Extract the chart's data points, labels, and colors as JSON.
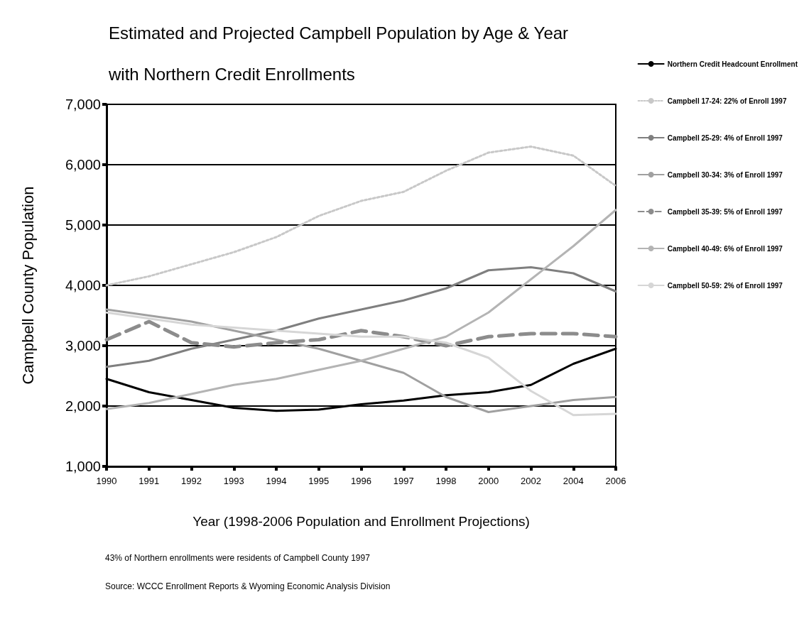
{
  "chart_data": {
    "type": "line",
    "title": "Estimated and Projected Campbell Population by Age & Year with Northern Credit Enrollments",
    "xlabel": "Year (1998-2006 Population and Enrollment Projections)",
    "ylabel": "Campbell County Population",
    "annotations": [
      "43% of Northern enrollments were residents of Campbell County 1997",
      "Source: WCCC Enrollment Reports & Wyoming Economic Analysis Division"
    ],
    "categories": [
      "1990",
      "1991",
      "1992",
      "1993",
      "1994",
      "1995",
      "1996",
      "1997",
      "1998",
      "2000",
      "2002",
      "2004",
      "2006"
    ],
    "series": [
      {
        "name": "Northern Credit Headcount Enrollment",
        "color": "#000000",
        "line_style": "solid",
        "values": [
          2450,
          2230,
          2100,
          1970,
          1920,
          1940,
          2030,
          2090,
          2180,
          2230,
          2350,
          2700,
          2950
        ]
      },
      {
        "name": "Campbell 17-24: 22% of Enroll 1997",
        "color": "#c8c8c8",
        "line_style": "dotted",
        "values": [
          4000,
          4150,
          4350,
          4550,
          4800,
          5150,
          5400,
          5550,
          5900,
          6200,
          6300,
          6150,
          5650
        ]
      },
      {
        "name": "Campbell 25-29: 4% of Enroll 1997",
        "color": "#7f7f7f",
        "line_style": "solid",
        "values": [
          2650,
          2750,
          2950,
          3100,
          3250,
          3450,
          3600,
          3750,
          3950,
          4250,
          4300,
          4200,
          3900
        ]
      },
      {
        "name": "Campbell 30-34: 3% of Enroll 1997",
        "color": "#a0a0a0",
        "line_style": "solid",
        "values": [
          3600,
          3500,
          3400,
          3250,
          3100,
          2950,
          2750,
          2550,
          2150,
          1900,
          2000,
          2100,
          2150
        ]
      },
      {
        "name": "Campbell 35-39: 5% of Enroll 1997",
        "color": "#8c8c8c",
        "line_style": "dashed",
        "values": [
          3100,
          3400,
          3050,
          2980,
          3050,
          3100,
          3250,
          3150,
          3000,
          3150,
          3200,
          3200,
          3150
        ]
      },
      {
        "name": "Campbell 40-49: 6% of Enroll 1997",
        "color": "#b4b4b4",
        "line_style": "solid",
        "values": [
          1950,
          2050,
          2200,
          2350,
          2450,
          2600,
          2750,
          2950,
          3150,
          3550,
          4100,
          4650,
          5250
        ]
      },
      {
        "name": "Campbell 50-59: 2% of Enroll 1997",
        "color": "#d6d6d6",
        "line_style": "solid",
        "values": [
          3550,
          3450,
          3350,
          3300,
          3250,
          3200,
          3150,
          3150,
          3050,
          2800,
          2250,
          1850,
          1870
        ]
      }
    ],
    "ylim": [
      1000,
      7000
    ],
    "yticks": [
      {
        "value": 1000,
        "label": "1,000"
      },
      {
        "value": 2000,
        "label": "2,000"
      },
      {
        "value": 3000,
        "label": "3,000"
      },
      {
        "value": 4000,
        "label": "4,000"
      },
      {
        "value": 5000,
        "label": "5,000"
      },
      {
        "value": 6000,
        "label": "6,000"
      },
      {
        "value": 7000,
        "label": "7,000"
      }
    ],
    "grid": "y",
    "legend": "right",
    "marker": "none"
  }
}
